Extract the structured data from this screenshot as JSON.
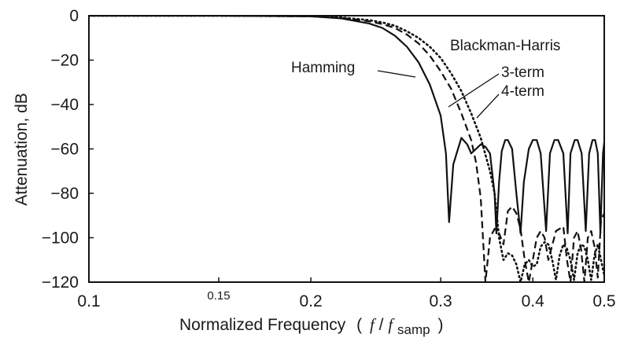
{
  "chart_data": {
    "type": "line",
    "title": "",
    "xlabel": {
      "prefix": "Normalized Frequency",
      "paren_open": "(",
      "f": "f",
      "slash": "/",
      "f_sub_base": "f",
      "f_sub": "samp",
      "paren_close": ")"
    },
    "ylabel": "Attenuation, dB",
    "x_scale": "log",
    "xlim": [
      0.1,
      0.5
    ],
    "ylim": [
      -120,
      0
    ],
    "x_ticks": [
      {
        "value": 0.1,
        "label": "0.1",
        "small": false
      },
      {
        "value": 0.15,
        "label": "0.15",
        "small": true
      },
      {
        "value": 0.2,
        "label": "0.2",
        "small": false
      },
      {
        "value": 0.3,
        "label": "0.3",
        "small": false
      },
      {
        "value": 0.4,
        "label": "0.4",
        "small": false
      },
      {
        "value": 0.5,
        "label": "0.5",
        "small": false
      }
    ],
    "y_ticks": [
      {
        "value": 0,
        "label": "0"
      },
      {
        "value": -20,
        "label": "−20"
      },
      {
        "value": -40,
        "label": "−40"
      },
      {
        "value": -60,
        "label": "−60"
      },
      {
        "value": -80,
        "label": "−80"
      },
      {
        "value": -100,
        "label": "−100"
      },
      {
        "value": -120,
        "label": "−120"
      }
    ],
    "grid": false,
    "annotations": {
      "hamming": "Hamming",
      "blackman_harris": "Blackman-Harris",
      "term3": "3-term",
      "term4": "4-term"
    },
    "series": [
      {
        "name": "Hamming",
        "style": "solid",
        "x": [
          0.1,
          0.15,
          0.2,
          0.22,
          0.24,
          0.25,
          0.26,
          0.27,
          0.28,
          0.29,
          0.3,
          0.305,
          0.308,
          0.312,
          0.32,
          0.326,
          0.33,
          0.335,
          0.34,
          0.345,
          0.35,
          0.355,
          0.357,
          0.36,
          0.363,
          0.367,
          0.37,
          0.375,
          0.38,
          0.385,
          0.389,
          0.395,
          0.4,
          0.405,
          0.41,
          0.417,
          0.422,
          0.428,
          0.433,
          0.44,
          0.446,
          0.45,
          0.456,
          0.46,
          0.466,
          0.472,
          0.477,
          0.482,
          0.486,
          0.49,
          0.494,
          0.498,
          0.5
        ],
        "y": [
          0,
          0,
          -0.3,
          -1.2,
          -3.5,
          -5.5,
          -9,
          -14,
          -21,
          -31,
          -45,
          -62,
          -93,
          -67,
          -55,
          -58,
          -62,
          -60,
          -58,
          -59,
          -62,
          -80,
          -98,
          -75,
          -61,
          -56,
          -56,
          -60,
          -80,
          -98,
          -75,
          -60,
          -56,
          -56,
          -62,
          -97,
          -62,
          -56,
          -56,
          -62,
          -98,
          -62,
          -56,
          -56,
          -62,
          -97,
          -62,
          -56,
          -56,
          -62,
          -98,
          -62,
          -57
        ]
      },
      {
        "name": "Blackman-Harris 3-term",
        "style": "dash",
        "x": [
          0.1,
          0.15,
          0.2,
          0.22,
          0.24,
          0.25,
          0.26,
          0.27,
          0.28,
          0.29,
          0.3,
          0.31,
          0.32,
          0.33,
          0.335,
          0.34,
          0.345,
          0.35,
          0.355,
          0.36,
          0.365,
          0.37,
          0.375,
          0.38,
          0.385,
          0.39,
          0.395,
          0.4,
          0.405,
          0.41,
          0.415,
          0.42,
          0.43,
          0.44,
          0.445,
          0.45,
          0.455,
          0.46,
          0.465,
          0.47,
          0.475,
          0.48,
          0.485,
          0.49,
          0.495,
          0.5
        ],
        "y": [
          0,
          0,
          -0.3,
          -1.0,
          -2.5,
          -3.8,
          -5.5,
          -8.5,
          -12.5,
          -18,
          -25,
          -33,
          -44,
          -56,
          -66,
          -82,
          -120,
          -100,
          -96,
          -98,
          -103,
          -88,
          -86,
          -89,
          -96,
          -110,
          -120,
          -110,
          -100,
          -97,
          -100,
          -110,
          -97,
          -95,
          -110,
          -120,
          -100,
          -97,
          -105,
          -120,
          -100,
          -97,
          -104,
          -118,
          -92,
          -89
        ]
      },
      {
        "name": "Blackman-Harris 4-term",
        "style": "dot",
        "x": [
          0.1,
          0.15,
          0.2,
          0.22,
          0.24,
          0.25,
          0.26,
          0.27,
          0.28,
          0.29,
          0.3,
          0.31,
          0.32,
          0.33,
          0.34,
          0.35,
          0.355,
          0.36,
          0.365,
          0.37,
          0.375,
          0.38,
          0.385,
          0.39,
          0.395,
          0.4,
          0.405,
          0.41,
          0.415,
          0.42,
          0.425,
          0.43,
          0.435,
          0.44,
          0.445,
          0.45,
          0.455,
          0.46,
          0.465,
          0.47,
          0.475,
          0.48,
          0.485,
          0.49,
          0.495,
          0.5
        ],
        "y": [
          0,
          0,
          -0.2,
          -0.8,
          -2.0,
          -3.0,
          -4.5,
          -7,
          -10,
          -14,
          -19,
          -26,
          -34,
          -44,
          -55,
          -70,
          -80,
          -100,
          -110,
          -107,
          -108,
          -112,
          -120,
          -112,
          -110,
          -113,
          -112,
          -104,
          -102,
          -103,
          -110,
          -119,
          -108,
          -103,
          -105,
          -110,
          -119,
          -107,
          -103,
          -104,
          -110,
          -119,
          -108,
          -103,
          -110,
          -117
        ]
      }
    ]
  }
}
